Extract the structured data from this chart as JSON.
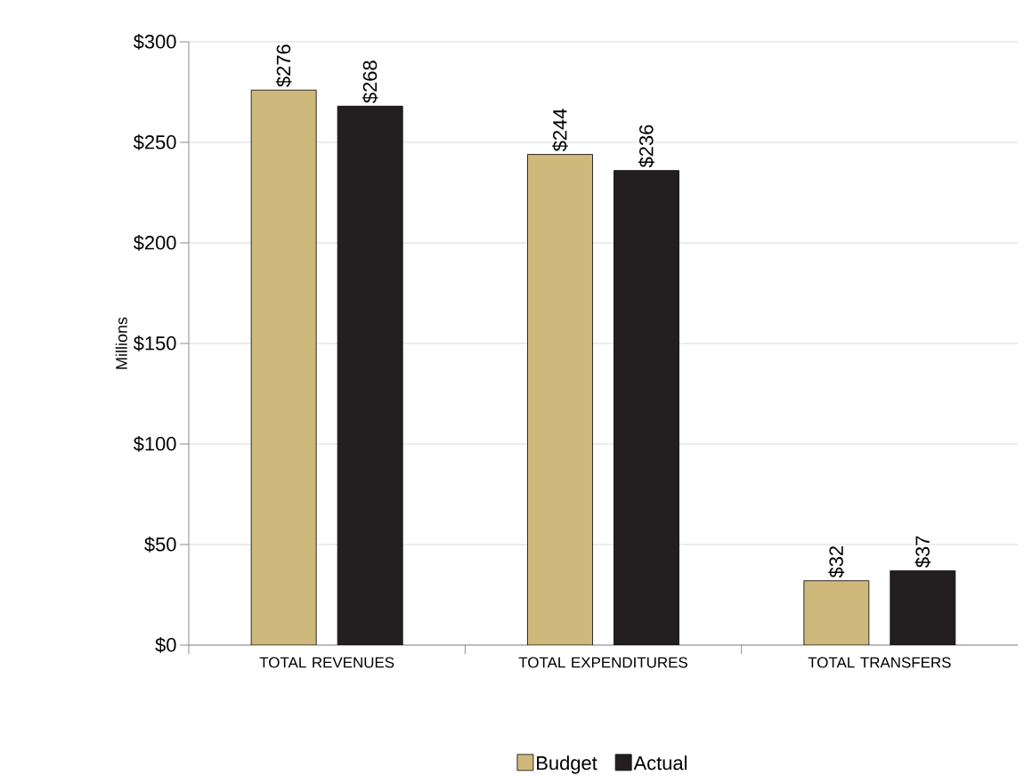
{
  "chart_data": {
    "type": "bar",
    "ylabel": "Millions",
    "categories": [
      "TOTAL REVENUES",
      "TOTAL EXPENDITURES",
      "TOTAL TRANSFERS"
    ],
    "series": [
      {
        "name": "Budget",
        "color": "#cfb87c",
        "values": [
          276,
          244,
          32
        ],
        "value_labels": [
          "$276",
          "$244",
          "$32"
        ]
      },
      {
        "name": "Actual",
        "color": "#231f20",
        "values": [
          268,
          236,
          37
        ],
        "value_labels": [
          "$268",
          "$236",
          "$37"
        ]
      }
    ],
    "ylim": [
      0,
      300
    ],
    "yticks": [
      {
        "value": 0,
        "label": "$0"
      },
      {
        "value": 50,
        "label": "$50"
      },
      {
        "value": 100,
        "label": "$100"
      },
      {
        "value": 150,
        "label": "$150"
      },
      {
        "value": 200,
        "label": "$200"
      },
      {
        "value": 250,
        "label": "$250"
      },
      {
        "value": 300,
        "label": "$300"
      }
    ],
    "grid": "y",
    "legend": "bottom"
  }
}
